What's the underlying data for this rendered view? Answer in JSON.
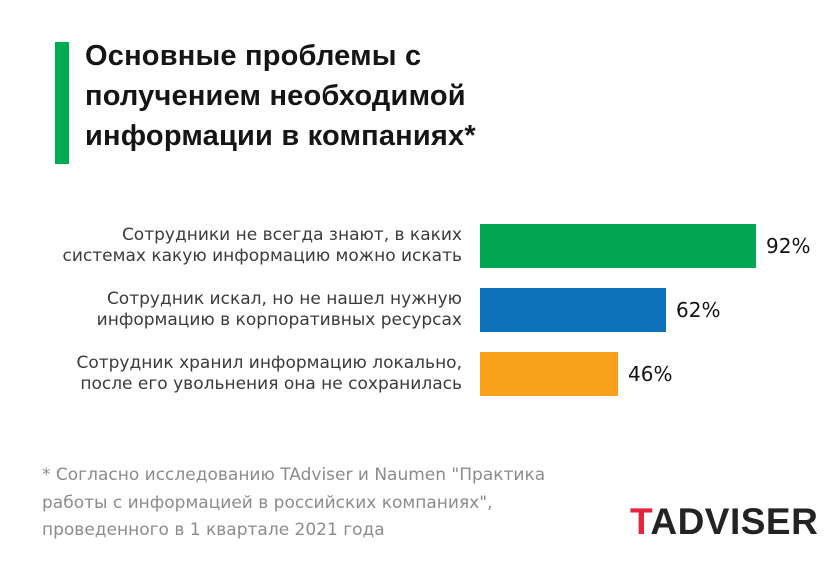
{
  "page": {
    "background": "#ffffff"
  },
  "title": {
    "text": "Основные проблемы с получением необходимой информации в компаниях*",
    "lines": [
      "Основные проблемы с",
      "получением необходимой",
      "информации в компаниях*"
    ],
    "accent_color": "#00AC52",
    "text_color": "#151515"
  },
  "chart_data": {
    "type": "bar",
    "orientation": "horizontal",
    "categories": [
      "Сотрудники не всегда знают, в каких системах какую информацию можно искать",
      "Сотрудник искал, но не нашел нужную информацию в корпоративных ресурсах",
      "Сотрудник хранил информацию локально, после его увольнения она не сохранилась"
    ],
    "category_lines": [
      [
        "Сотрудники не всегда знают, в каких",
        "системах какую информацию можно искать"
      ],
      [
        "Сотрудник искал, но не нашел нужную",
        "информацию в корпоративных ресурсах"
      ],
      [
        "Сотрудник хранил информацию локально,",
        "после его увольнения она не сохранилась"
      ]
    ],
    "values": [
      92,
      62,
      46
    ],
    "data_labels": [
      "92%",
      "62%",
      "46%"
    ],
    "unit": "%",
    "bar_colors": [
      "#00A651",
      "#0E72B8",
      "#F9A11B"
    ],
    "xlim": [
      0,
      100
    ],
    "grid": false,
    "legend": false
  },
  "footnote": {
    "lines": [
      "* Согласно исследованию TAdviser и Naumen \"Практика",
      "работы с информацией в российских компаниях\",",
      "проведенного в 1 квартале 2021 года"
    ],
    "color": "#8C8C8C"
  },
  "logo": {
    "prefix": "T",
    "rest": "ADVISER",
    "prefix_color": "#E8213D",
    "text_color": "#232323"
  }
}
